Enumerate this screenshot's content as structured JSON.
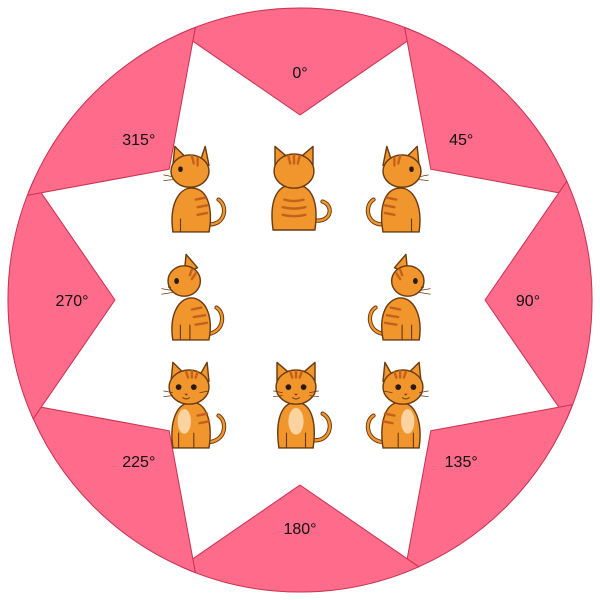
{
  "colors": {
    "sector_fill": "#ff6b8b",
    "sector_stroke": "#c8314f",
    "cat_body": "#f0962d",
    "cat_stripe": "#c4601b",
    "cat_outline": "#6b3a10",
    "cat_eye": "#2b1a10"
  },
  "sectors": [
    {
      "id": "0",
      "label": "0°",
      "direction_deg": 0
    },
    {
      "id": "45",
      "label": "45°",
      "direction_deg": 45
    },
    {
      "id": "90",
      "label": "90°",
      "direction_deg": 90
    },
    {
      "id": "135",
      "label": "135°",
      "direction_deg": 135
    },
    {
      "id": "180",
      "label": "180°",
      "direction_deg": 180
    },
    {
      "id": "225",
      "label": "225°",
      "direction_deg": 225
    },
    {
      "id": "270",
      "label": "270°",
      "direction_deg": 270
    },
    {
      "id": "315",
      "label": "315°",
      "direction_deg": 315
    }
  ],
  "cats": [
    {
      "id": "315",
      "view": "back-three-quarter-left",
      "icon": "cat-icon"
    },
    {
      "id": "0",
      "view": "back",
      "icon": "cat-icon"
    },
    {
      "id": "45",
      "view": "back-three-quarter-right",
      "icon": "cat-icon"
    },
    {
      "id": "270",
      "view": "side-left",
      "icon": "cat-icon"
    },
    {
      "id": "90",
      "view": "side-right",
      "icon": "cat-icon"
    },
    {
      "id": "225",
      "view": "front-three-quarter-left",
      "icon": "cat-icon"
    },
    {
      "id": "180",
      "view": "front",
      "icon": "cat-icon"
    },
    {
      "id": "135",
      "view": "front-three-quarter-right",
      "icon": "cat-icon"
    }
  ]
}
